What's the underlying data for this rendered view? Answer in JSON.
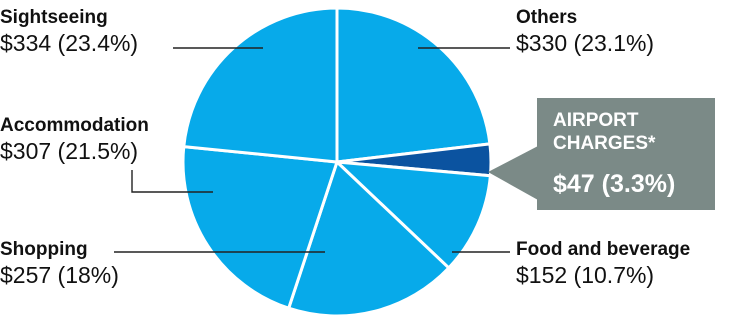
{
  "chart_data": {
    "type": "pie",
    "title": "",
    "currency": "$",
    "slices": [
      {
        "name": "Others",
        "value": 330,
        "percent": 23.1,
        "value_label": "$330 (23.1%)",
        "color": "#07aaea"
      },
      {
        "name": "AIRPORT CHARGES*",
        "value": 47,
        "percent": 3.3,
        "value_label": "$47 (3.3%)",
        "color": "#0b53a0",
        "highlight": true
      },
      {
        "name": "Food and beverage",
        "value": 152,
        "percent": 10.7,
        "value_label": "$152 (10.7%)",
        "color": "#07aaea"
      },
      {
        "name": "Shopping",
        "value": 257,
        "percent": 18,
        "value_label": "$257 (18%)",
        "color": "#07aaea"
      },
      {
        "name": "Accommodation",
        "value": 307,
        "percent": 21.5,
        "value_label": "$307 (21.5%)",
        "color": "#07aaea"
      },
      {
        "name": "Sightseeing",
        "value": 334,
        "percent": 23.4,
        "value_label": "$334 (23.4%)",
        "color": "#07aaea"
      }
    ],
    "start_direction": "top-center",
    "order": "clockwise",
    "separator_color": "#ffffff",
    "callout_color": "#7b8a87"
  }
}
